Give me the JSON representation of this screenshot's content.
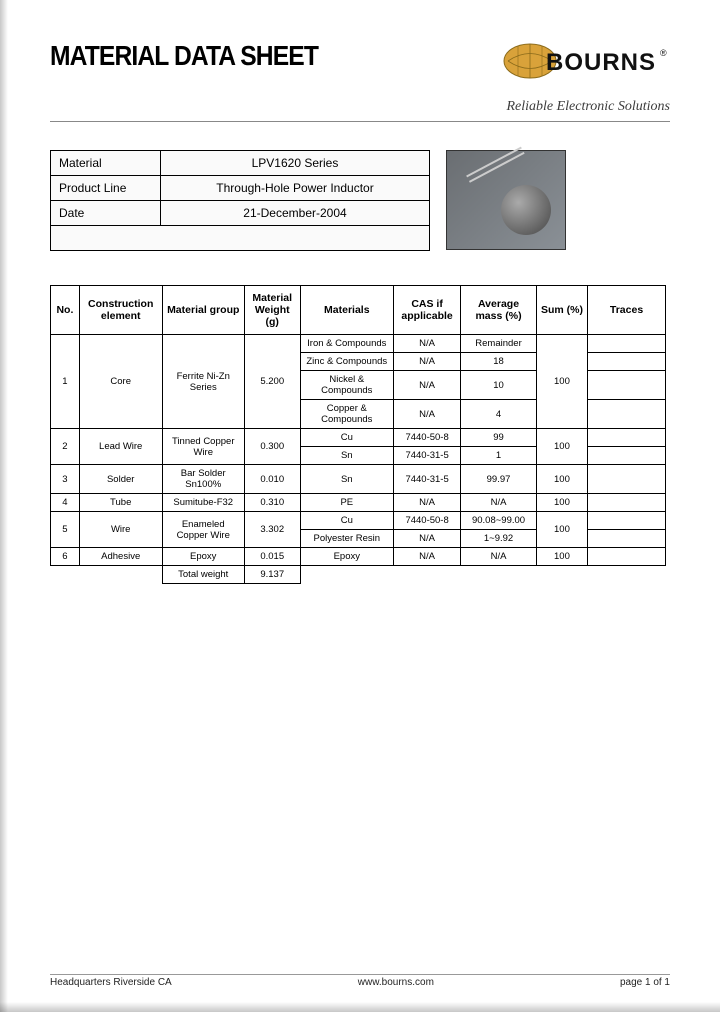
{
  "header": {
    "title": "MATERIAL DATA SHEET",
    "logo_text": "BOURNS",
    "logo_registered": "®",
    "tagline": "Reliable Electronic Solutions",
    "logo_colors": {
      "globe": "#d9a23a",
      "text": "#1a1a1a",
      "bg": "#ffffff"
    }
  },
  "info": {
    "rows": [
      {
        "label": "Material",
        "value": "LPV1620 Series"
      },
      {
        "label": "Product Line",
        "value": "Through-Hole Power Inductor"
      },
      {
        "label": "Date",
        "value": "21-December-2004"
      },
      {
        "label": "",
        "value": ""
      }
    ],
    "image_alt": "through-hole inductor component",
    "image_bg": "#7d8388"
  },
  "main_table": {
    "headers": [
      "No.",
      "Construction element",
      "Material group",
      "Material Weight (g)",
      "Materials",
      "CAS if applicable",
      "Average mass (%)",
      "Sum (%)",
      "Traces"
    ],
    "groups": [
      {
        "no": "1",
        "element": "Core",
        "group": "Ferrite Ni-Zn Series",
        "weight": "5.200",
        "materials": [
          {
            "name": "Iron & Compounds",
            "cas": "N/A",
            "mass": "Remainder"
          },
          {
            "name": "Zinc & Compounds",
            "cas": "N/A",
            "mass": "18"
          },
          {
            "name": "Nickel & Compounds",
            "cas": "N/A",
            "mass": "10"
          },
          {
            "name": "Copper & Compounds",
            "cas": "N/A",
            "mass": "4"
          }
        ],
        "sum": "100",
        "traces": ""
      },
      {
        "no": "2",
        "element": "Lead Wire",
        "group": "Tinned Copper Wire",
        "weight": "0.300",
        "materials": [
          {
            "name": "Cu",
            "cas": "7440-50-8",
            "mass": "99"
          },
          {
            "name": "Sn",
            "cas": "7440-31-5",
            "mass": "1"
          }
        ],
        "sum": "100",
        "traces": ""
      },
      {
        "no": "3",
        "element": "Solder",
        "group": "Bar Solder Sn100%",
        "weight": "0.010",
        "materials": [
          {
            "name": "Sn",
            "cas": "7440-31-5",
            "mass": "99.97"
          }
        ],
        "sum": "100",
        "traces": ""
      },
      {
        "no": "4",
        "element": "Tube",
        "group": "Sumitube-F32",
        "weight": "0.310",
        "materials": [
          {
            "name": "PE",
            "cas": "N/A",
            "mass": "N/A"
          }
        ],
        "sum": "100",
        "traces": ""
      },
      {
        "no": "5",
        "element": "Wire",
        "group": "Enameled Copper Wire",
        "weight": "3.302",
        "materials": [
          {
            "name": "Cu",
            "cas": "7440-50-8",
            "mass": "90.08~99.00"
          },
          {
            "name": "Polyester Resin",
            "cas": "N/A",
            "mass": "1~9.92"
          }
        ],
        "sum": "100",
        "traces": ""
      },
      {
        "no": "6",
        "element": "Adhesive",
        "group": "Epoxy",
        "weight": "0.015",
        "materials": [
          {
            "name": "Epoxy",
            "cas": "N/A",
            "mass": "N/A"
          }
        ],
        "sum": "100",
        "traces": ""
      }
    ],
    "total": {
      "label": "Total weight",
      "value": "9.137"
    }
  },
  "footer": {
    "left": "Headquarters Riverside CA",
    "center": "www.bourns.com",
    "right": "page 1 of 1"
  },
  "style": {
    "page_bg": "#ffffff",
    "outer_bg": "#5a5a5a",
    "border_color": "#000000",
    "font": "Arial"
  }
}
